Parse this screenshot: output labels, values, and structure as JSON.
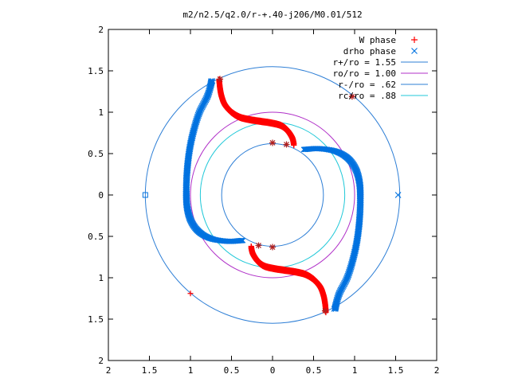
{
  "chart_data": {
    "type": "scatter",
    "title": "m2/n2.5/q2.0/r-+.40-j206/M0.01/512",
    "xlabel": "",
    "ylabel": "",
    "xlim": [
      -2,
      2
    ],
    "ylim": [
      -2,
      2
    ],
    "grid": false,
    "legend_position": "top-right",
    "x_ticks": [
      {
        "value": -2,
        "label": "2"
      },
      {
        "value": -1.5,
        "label": "1.5"
      },
      {
        "value": -1,
        "label": "1"
      },
      {
        "value": -0.5,
        "label": "0.5"
      },
      {
        "value": 0,
        "label": "0"
      },
      {
        "value": 0.5,
        "label": "0.5"
      },
      {
        "value": 1,
        "label": "1"
      },
      {
        "value": 1.5,
        "label": "1.5"
      },
      {
        "value": 2,
        "label": "2"
      }
    ],
    "y_ticks": [
      {
        "value": 2,
        "label": "2"
      },
      {
        "value": 1.5,
        "label": "1.5"
      },
      {
        "value": 1,
        "label": "1"
      },
      {
        "value": 0.5,
        "label": "0.5"
      },
      {
        "value": 0,
        "label": "0"
      },
      {
        "value": -0.5,
        "label": "0.5"
      },
      {
        "value": -1,
        "label": "1"
      },
      {
        "value": -1.5,
        "label": "1.5"
      },
      {
        "value": -2,
        "label": "2"
      }
    ],
    "series": [
      {
        "name": "W phase",
        "marker": "+",
        "color": "#ff0000",
        "spirals": [
          [
            [
              -0.65,
              1.4
            ],
            [
              -0.64,
              1.3
            ],
            [
              -0.62,
              1.2
            ],
            [
              -0.58,
              1.1
            ],
            [
              -0.5,
              1.01
            ],
            [
              -0.4,
              0.95
            ],
            [
              -0.28,
              0.92
            ],
            [
              -0.15,
              0.9
            ],
            [
              -0.02,
              0.88
            ],
            [
              0.1,
              0.85
            ],
            [
              0.18,
              0.79
            ],
            [
              0.24,
              0.7
            ],
            [
              0.26,
              0.62
            ]
          ],
          [
            [
              0.65,
              -1.4
            ],
            [
              0.64,
              -1.3
            ],
            [
              0.62,
              -1.2
            ],
            [
              0.58,
              -1.1
            ],
            [
              0.5,
              -1.01
            ],
            [
              0.4,
              -0.95
            ],
            [
              0.28,
              -0.92
            ],
            [
              0.15,
              -0.9
            ],
            [
              0.02,
              -0.88
            ],
            [
              -0.1,
              -0.85
            ],
            [
              -0.18,
              -0.79
            ],
            [
              -0.24,
              -0.7
            ],
            [
              -0.26,
              -0.62
            ]
          ]
        ],
        "isolated": [
          [
            -1.0,
            -1.19
          ],
          [
            0.97,
            1.19
          ]
        ],
        "stars": [
          [
            -0.64,
            1.4
          ],
          [
            0.97,
            1.19
          ],
          [
            0.0,
            0.63
          ],
          [
            0.17,
            0.61
          ],
          [
            0.64,
            -1.4
          ],
          [
            0.0,
            -0.63
          ],
          [
            -0.17,
            -0.61
          ]
        ]
      },
      {
        "name": "drho phase",
        "marker": "x",
        "color": "#0072e0",
        "spirals": [
          [
            [
              -0.75,
              1.38
            ],
            [
              -0.8,
              1.2
            ],
            [
              -0.9,
              1.0
            ],
            [
              -0.97,
              0.78
            ],
            [
              -1.02,
              0.55
            ],
            [
              -1.05,
              0.3
            ],
            [
              -1.06,
              0.05
            ],
            [
              -1.05,
              -0.15
            ],
            [
              -1.0,
              -0.32
            ],
            [
              -0.9,
              -0.45
            ],
            [
              -0.75,
              -0.53
            ],
            [
              -0.55,
              -0.56
            ],
            [
              -0.38,
              -0.55
            ]
          ],
          [
            [
              0.75,
              -1.38
            ],
            [
              0.8,
              -1.2
            ],
            [
              0.9,
              -1.0
            ],
            [
              0.97,
              -0.78
            ],
            [
              1.02,
              -0.55
            ],
            [
              1.05,
              -0.3
            ],
            [
              1.06,
              -0.05
            ],
            [
              1.05,
              0.15
            ],
            [
              1.0,
              0.32
            ],
            [
              0.9,
              0.45
            ],
            [
              0.75,
              0.53
            ],
            [
              0.55,
              0.56
            ],
            [
              0.38,
              0.55
            ]
          ]
        ],
        "isolated": [
          [
            1.53,
            0.0
          ]
        ],
        "squares": [
          [
            -1.55,
            0.0
          ]
        ]
      }
    ],
    "circles": [
      {
        "name": "r+/ro = 1.55",
        "radius": 1.55,
        "color": "#2e7fd6"
      },
      {
        "name": "ro/ro = 1.00",
        "radius": 1.0,
        "color": "#b030c8"
      },
      {
        "name": "r-/ro = .62",
        "radius": 0.62,
        "color": "#2e7fd6"
      },
      {
        "name": "rc/ro = .88",
        "radius": 0.88,
        "color": "#20c8d8"
      }
    ]
  }
}
